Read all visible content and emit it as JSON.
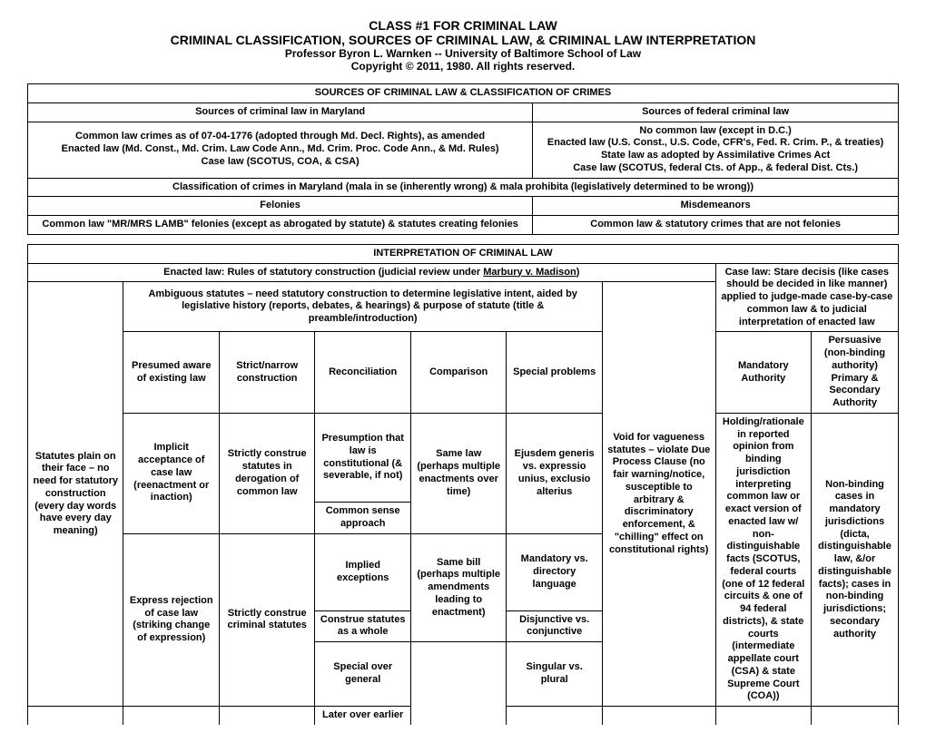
{
  "header": {
    "title1": "CLASS #1 FOR CRIMINAL LAW",
    "title2": "CRIMINAL CLASSIFICATION, SOURCES OF CRIMINAL LAW, & CRIMINAL LAW INTERPRETATION",
    "prof": "Professor Byron L. Warnken -- University of Baltimore School of Law",
    "copy": "Copyright © 2011, 1980.  All rights reserved."
  },
  "t1": {
    "r1": "SOURCES OF CRIMINAL LAW & CLASSIFICATION OF CRIMES",
    "r2a": "Sources of criminal law in Maryland",
    "r2b": "Sources of federal criminal law",
    "r3a": "Common law crimes as of 07-04-1776 (adopted through Md. Decl. Rights), as amended\nEnacted law (Md. Const., Md. Crim. Law Code Ann., Md. Crim. Proc. Code Ann., & Md. Rules)\nCase law (SCOTUS, COA, & CSA)",
    "r3b": "No common law (except in D.C.)\nEnacted law (U.S. Const., U.S. Code, CFR's, Fed. R. Crim. P., & treaties)\nState law as adopted by Assimilative Crimes Act\nCase law (SCOTUS, federal Cts. of App., & federal Dist. Cts.)",
    "r4": "Classification of crimes in Maryland (mala in se (inherently wrong) & mala prohibita (legislatively determined to be wrong))",
    "r5a": "Felonies",
    "r5b": "Misdemeanors",
    "r6a": "Common law \"MR/MRS LAMB\" felonies (except as abrogated by statute) & statutes creating felonies",
    "r6b": "Common law & statutory crimes that are not felonies"
  },
  "t2": {
    "r1": "INTERPRETATION OF CRIMINAL LAW",
    "r2a_pre": "Enacted law:  Rules of statutory construction (judicial review under ",
    "r2a_u": "Marbury v. Madison",
    "r2a_post": ")",
    "r2b": "Case law:  Stare decisis (like cases should be decided in like manner) applied to judge-made case-by-case common law & to judicial interpretation of enacted law",
    "col1": "Statutes plain on their face – no need for statutory construction (every day words have every day meaning)",
    "r3mid": "Ambiguous statutes – need statutory construction to determine legislative intent, aided by legislative history (reports, debates, & hearings) & purpose of statute (title & preamble/introduction)",
    "col6": "Void for vagueness statutes – violate Due Process Clause (no fair warning/notice, susceptible to arbitrary & discriminatory enforcement, & \"chilling\" effect on constitutional rights)",
    "r4a": "Presumed aware of existing law",
    "r4b": "Strict/narrow construction",
    "r4c": "Reconciliation",
    "r4d": "Comparison",
    "r4e": "Special problems",
    "r4ma": "Mandatory Authority",
    "r4pa": "Persuasive (non-binding authority) Primary & Secondary Authority",
    "presump": "Presumption that law is constitutional (& severable, if not)",
    "implicit": "Implicit acceptance of case law (reenactment or inaction)",
    "strictderog": "Strictly construe statutes in derogation of common law",
    "commonsense": "Common sense approach",
    "implied": "Implied exceptions",
    "construewhole": "Construe statutes as a whole",
    "specialgeneral": "Special over general",
    "laterearlier": "Later over earlier",
    "samelaw": "Same law (perhaps multiple enactments over time)",
    "samebill": "Same bill (perhaps multiple amendments leading to enactment)",
    "ejusdem": "Ejusdem generis vs. expressio unius, exclusio alterius",
    "manddir": "Mandatory vs. directory language",
    "disjconj": "Disjunctive vs. conjunctive",
    "singplur": "Singular vs. plural",
    "express": "Express rejection of case law (striking change of expression)",
    "strictcrim": "Strictly construe criminal statutes",
    "holding": "Holding/rationale in reported opinion from binding jurisdiction interpreting common law or exact version of enacted law w/ non-distinguishable facts (SCOTUS, federal courts (one of 12 federal circuits & one of 94 federal districts), & state courts (intermediate appellate court (CSA) & state Supreme Court (COA))",
    "nonbinding": "Non-binding cases in mandatory jurisdictions (dicta, distinguishable law, &/or distinguishable facts); cases in non-binding jurisdictions; secondary authority"
  }
}
